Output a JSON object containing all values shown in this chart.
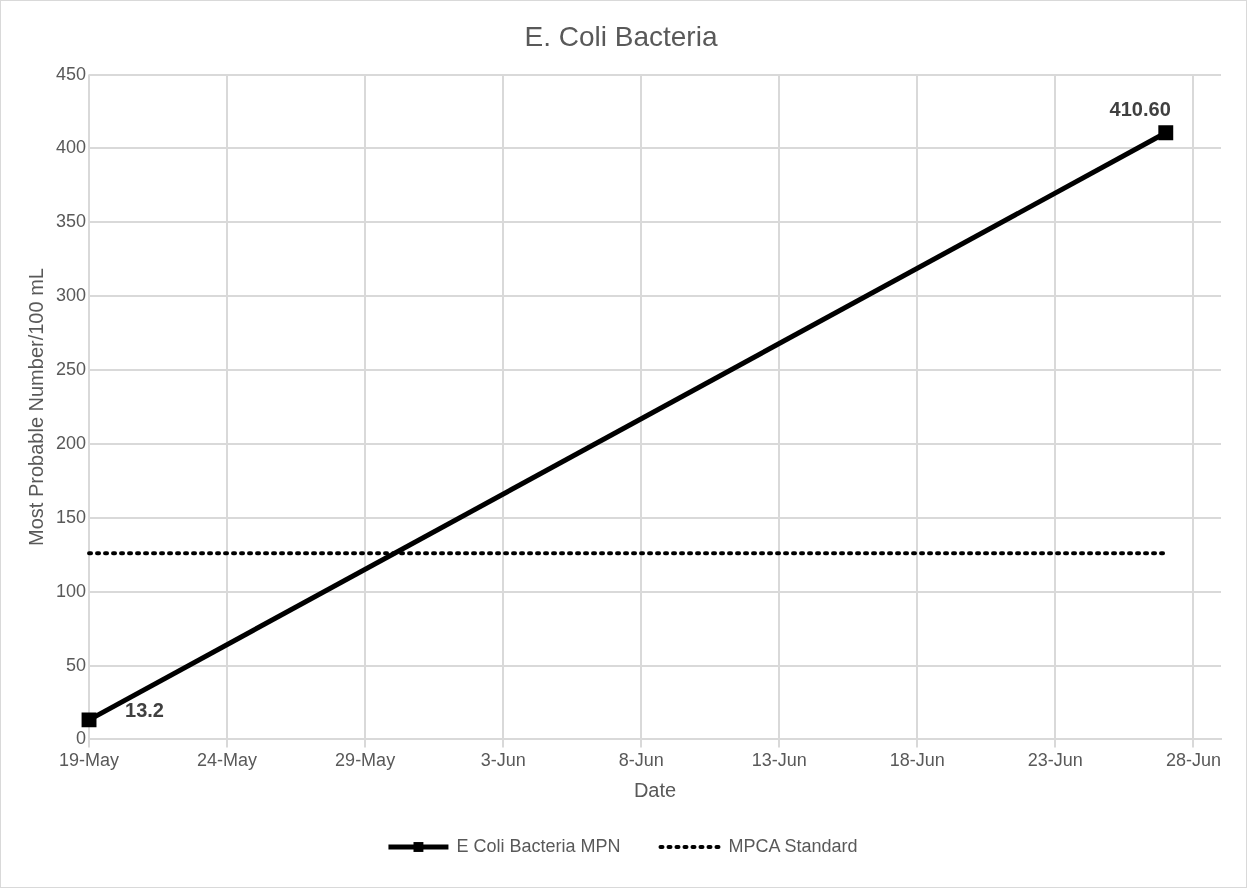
{
  "chart_data": {
    "type": "line",
    "title": "E. Coli Bacteria",
    "xlabel": "Date",
    "ylabel": "Most Probable Number/100 mL",
    "xlim": [
      "--05-19",
      "--06-29"
    ],
    "xticks": [
      {
        "value": "--05-19",
        "label": "19-May"
      },
      {
        "value": "--05-24",
        "label": "24-May"
      },
      {
        "value": "--05-29",
        "label": "29-May"
      },
      {
        "value": "--06-03",
        "label": "3-Jun"
      },
      {
        "value": "--06-08",
        "label": "8-Jun"
      },
      {
        "value": "--06-13",
        "label": "13-Jun"
      },
      {
        "value": "--06-18",
        "label": "18-Jun"
      },
      {
        "value": "--06-23",
        "label": "23-Jun"
      },
      {
        "value": "--06-28",
        "label": "28-Jun"
      }
    ],
    "ylim": [
      0,
      450
    ],
    "yticks": [
      0,
      50,
      100,
      150,
      200,
      250,
      300,
      350,
      400,
      450
    ],
    "grid": true,
    "legend": "bottom",
    "series": [
      {
        "name": "E Coli Bacteria MPN",
        "color": "#000000",
        "x": [
          "--05-19",
          "--06-27"
        ],
        "values": [
          13.2,
          410.6
        ],
        "value_labels": [
          "13.2",
          "410.60"
        ],
        "marker": "square",
        "line_style": "solid"
      },
      {
        "name": "MPCA Standard",
        "color": "#000000",
        "x": [
          "--05-19",
          "--06-27"
        ],
        "values": [
          126,
          126
        ],
        "marker": "none",
        "line_style": "dotted"
      }
    ]
  }
}
